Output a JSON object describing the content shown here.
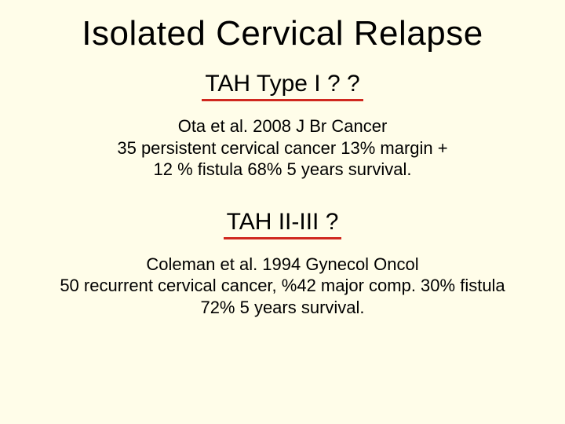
{
  "slide": {
    "background_color": "#fffde9",
    "text_color": "#000000",
    "underline_color": "#d0281f",
    "font_family": "Comic Sans MS",
    "title": {
      "text": "Isolated Cervical Relapse",
      "fontsize": 44
    },
    "sections": [
      {
        "heading": {
          "text": "TAH Type I ? ?",
          "fontsize": 30,
          "underline": true
        },
        "body_lines": [
          "Ota et al. 2008 J Br Cancer",
          "35 persistent cervical cancer 13% margin +",
          "12 % fistula  68% 5 years survival."
        ],
        "body_fontsize": 22
      },
      {
        "heading": {
          "text": "TAH II-III ?",
          "fontsize": 30,
          "underline": true
        },
        "body_lines": [
          "Coleman et al. 1994 Gynecol Oncol",
          "50 recurrent cervical cancer, %42 major comp.  30% fistula",
          "72% 5 years survival."
        ],
        "body_fontsize": 22
      }
    ]
  }
}
